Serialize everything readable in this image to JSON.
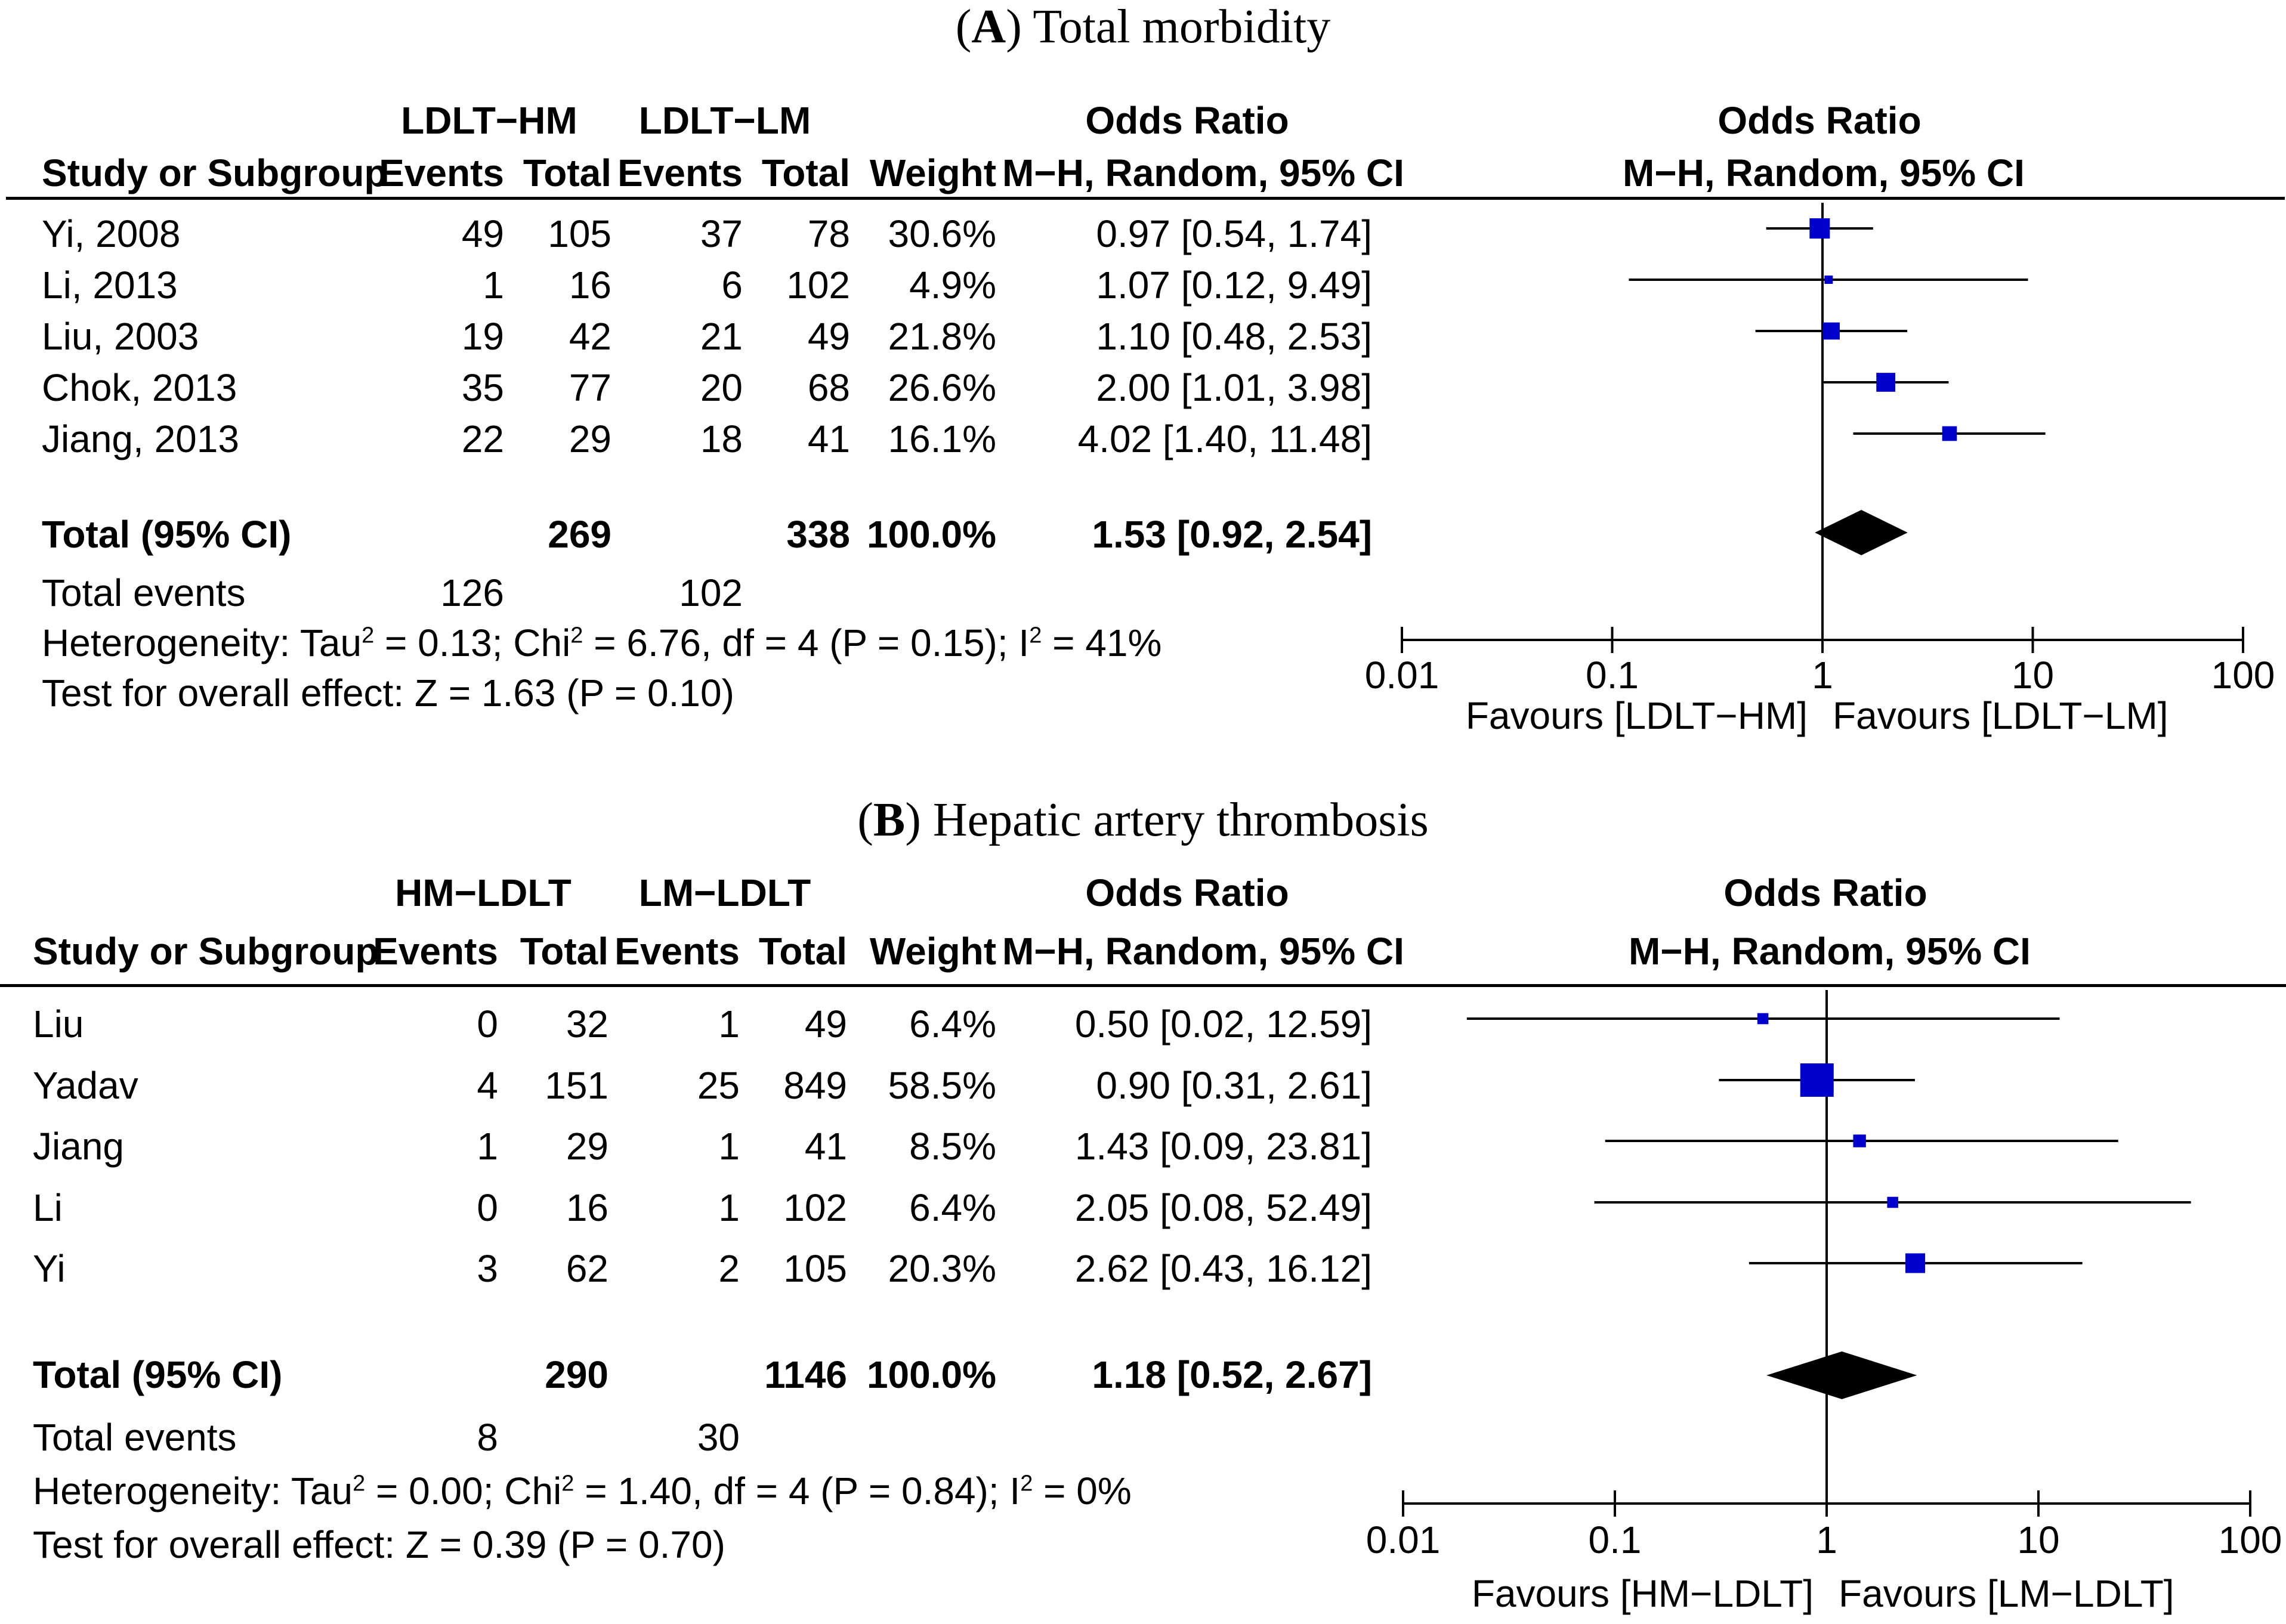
{
  "chart_data": [
    {
      "type": "forest",
      "panel_label": "A",
      "title": "Total morbidity",
      "group1": "LDLT−HM",
      "group2": "LDLT−LM",
      "columns": {
        "study": "Study or Subgroup",
        "events": "Events",
        "total": "Total",
        "weight": "Weight",
        "effect_top": "Odds Ratio",
        "effect_method": "M−H, Random, 95% CI"
      },
      "plot_header": {
        "top": "Odds Ratio",
        "method": "M−H, Random, 95% CI"
      },
      "studies": [
        {
          "name": "Yi, 2008",
          "e1": "49",
          "n1": "105",
          "e2": "37",
          "n2": "78",
          "weight": "30.6%",
          "ci_text": "0.97 [0.54, 1.74]",
          "or": 0.97,
          "lo": 0.54,
          "hi": 1.74,
          "w": 30.6
        },
        {
          "name": "Li, 2013",
          "e1": "1",
          "n1": "16",
          "e2": "6",
          "n2": "102",
          "weight": "4.9%",
          "ci_text": "1.07 [0.12, 9.49]",
          "or": 1.07,
          "lo": 0.12,
          "hi": 9.49,
          "w": 4.9
        },
        {
          "name": "Liu, 2003",
          "e1": "19",
          "n1": "42",
          "e2": "21",
          "n2": "49",
          "weight": "21.8%",
          "ci_text": "1.10 [0.48, 2.53]",
          "or": 1.1,
          "lo": 0.48,
          "hi": 2.53,
          "w": 21.8
        },
        {
          "name": "Chok, 2013",
          "e1": "35",
          "n1": "77",
          "e2": "20",
          "n2": "68",
          "weight": "26.6%",
          "ci_text": "2.00 [1.01, 3.98]",
          "or": 2.0,
          "lo": 1.01,
          "hi": 3.98,
          "w": 26.6
        },
        {
          "name": "Jiang, 2013",
          "e1": "22",
          "n1": "29",
          "e2": "18",
          "n2": "41",
          "weight": "16.1%",
          "ci_text": "4.02 [1.40, 11.48]",
          "or": 4.02,
          "lo": 1.4,
          "hi": 11.48,
          "w": 16.1
        }
      ],
      "total": {
        "label": "Total (95% CI)",
        "n1": "269",
        "n2": "338",
        "weight": "100.0%",
        "ci_text": "1.53 [0.92, 2.54]",
        "or": 1.53,
        "lo": 0.92,
        "hi": 2.54
      },
      "total_events": {
        "label": "Total events",
        "e1": "126",
        "e2": "102"
      },
      "heterogeneity": {
        "p1": "Heterogeneity: Tau",
        "p2": " = 0.13; Chi",
        "p3": " = 6.76, df = 4 (P = 0.15); I",
        "p4": " = 41%",
        "sup": "2"
      },
      "overall": "Test for overall effect: Z = 1.63 (P = 0.10)",
      "x_axis": {
        "scale": "log",
        "range": [
          0.01,
          100
        ],
        "ticks": [
          "0.01",
          "0.1",
          "1",
          "10",
          "100"
        ]
      },
      "favours_left": "Favours [LDLT−HM]",
      "favours_right": "Favours [LDLT−LM]"
    },
    {
      "type": "forest",
      "panel_label": "B",
      "title": "Hepatic artery thrombosis",
      "group1": "HM−LDLT",
      "group2": "LM−LDLT",
      "columns": {
        "study": "Study or Subgroup",
        "events": "Events",
        "total": "Total",
        "weight": "Weight",
        "effect_top": "Odds Ratio",
        "effect_method": "M−H, Random, 95% CI"
      },
      "plot_header": {
        "top": "Odds Ratio",
        "method": "M−H, Random, 95% CI"
      },
      "studies": [
        {
          "name": "Liu",
          "e1": "0",
          "n1": "32",
          "e2": "1",
          "n2": "49",
          "weight": "6.4%",
          "ci_text": "0.50 [0.02, 12.59]",
          "or": 0.5,
          "lo": 0.02,
          "hi": 12.59,
          "w": 6.4
        },
        {
          "name": "Yadav",
          "e1": "4",
          "n1": "151",
          "e2": "25",
          "n2": "849",
          "weight": "58.5%",
          "ci_text": "0.90 [0.31, 2.61]",
          "or": 0.9,
          "lo": 0.31,
          "hi": 2.61,
          "w": 58.5
        },
        {
          "name": "Jiang",
          "e1": "1",
          "n1": "29",
          "e2": "1",
          "n2": "41",
          "weight": "8.5%",
          "ci_text": "1.43 [0.09, 23.81]",
          "or": 1.43,
          "lo": 0.09,
          "hi": 23.81,
          "w": 8.5
        },
        {
          "name": "Li",
          "e1": "0",
          "n1": "16",
          "e2": "1",
          "n2": "102",
          "weight": "6.4%",
          "ci_text": "2.05 [0.08, 52.49]",
          "or": 2.05,
          "lo": 0.08,
          "hi": 52.49,
          "w": 6.4
        },
        {
          "name": "Yi",
          "e1": "3",
          "n1": "62",
          "e2": "2",
          "n2": "105",
          "weight": "20.3%",
          "ci_text": "2.62 [0.43, 16.12]",
          "or": 2.62,
          "lo": 0.43,
          "hi": 16.12,
          "w": 20.3
        }
      ],
      "total": {
        "label": "Total (95% CI)",
        "n1": "290",
        "n2": "1146",
        "weight": "100.0%",
        "ci_text": "1.18 [0.52, 2.67]",
        "or": 1.18,
        "lo": 0.52,
        "hi": 2.67
      },
      "total_events": {
        "label": "Total events",
        "e1": "8",
        "e2": "30"
      },
      "heterogeneity": {
        "p1": "Heterogeneity: Tau",
        "p2": " = 0.00; Chi",
        "p3": " = 1.40, df = 4 (P = 0.84); I",
        "p4": " = 0%",
        "sup": "2"
      },
      "overall": "Test for overall effect: Z = 0.39 (P = 0.70)",
      "x_axis": {
        "scale": "log",
        "range": [
          0.01,
          100
        ],
        "ticks": [
          "0.01",
          "0.1",
          "1",
          "10",
          "100"
        ]
      },
      "favours_left": "Favours [HM−LDLT]",
      "favours_right": "Favours [LM−LDLT]"
    }
  ],
  "colors": {
    "marker": "#0000cc",
    "diamond": "#000000",
    "line": "#000000"
  }
}
